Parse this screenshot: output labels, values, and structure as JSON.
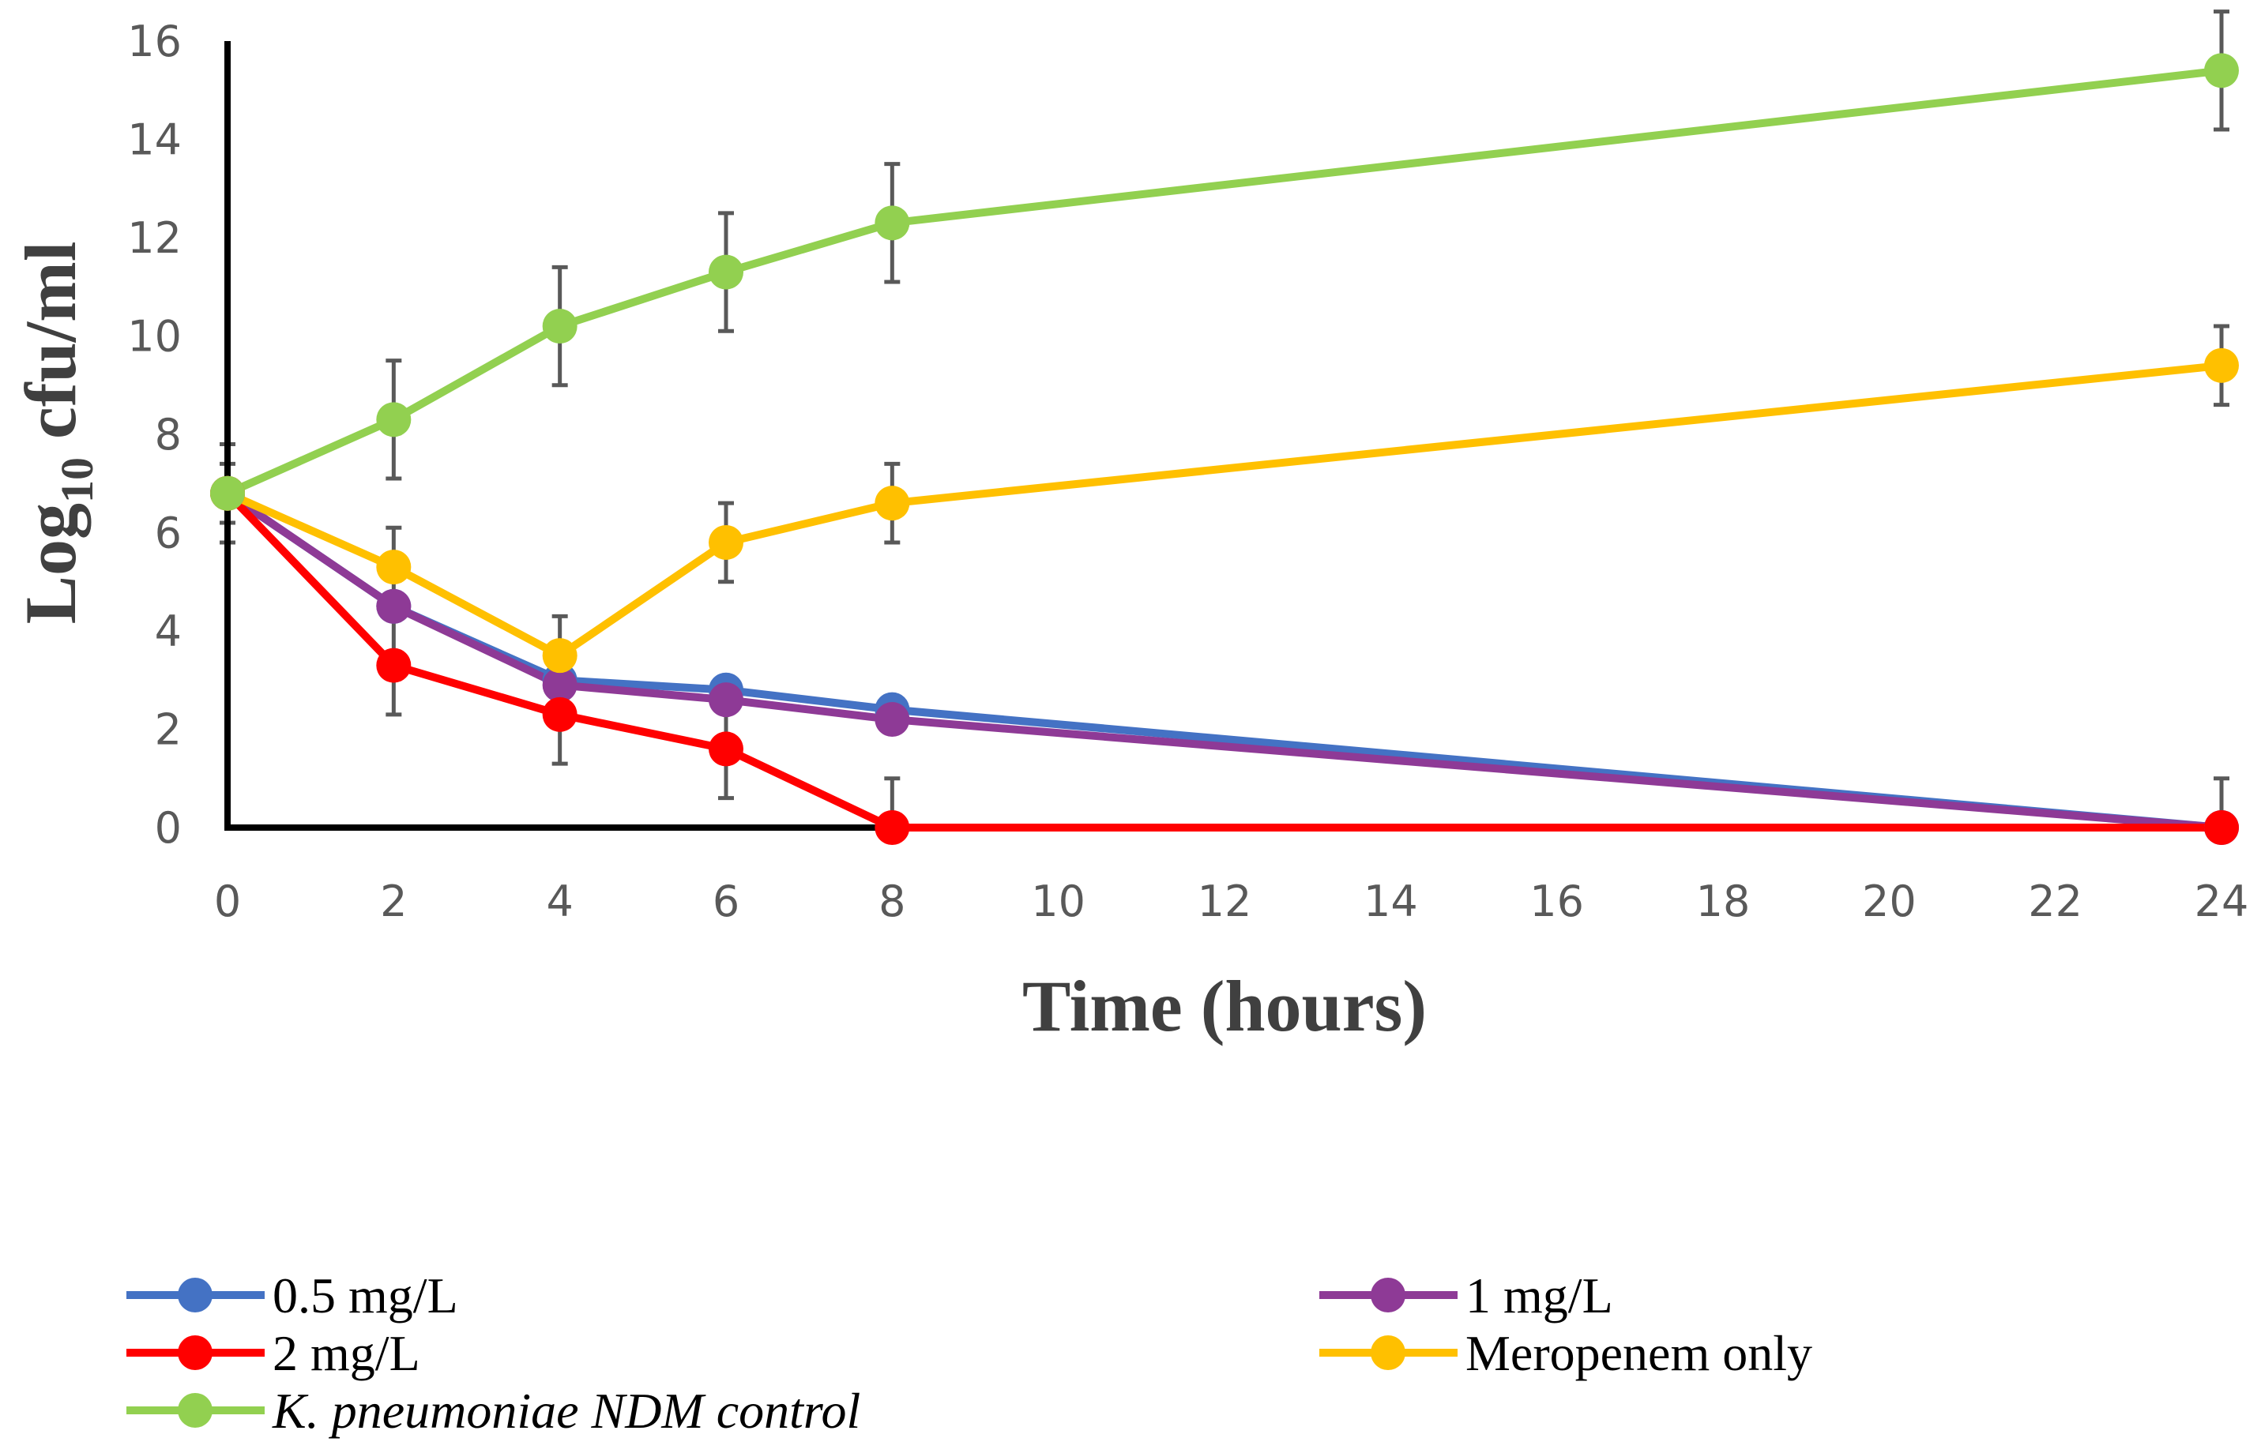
{
  "chart_data": {
    "type": "line",
    "xlabel": "Time (hours)",
    "ylabel_main": "Log",
    "ylabel_sub": "10",
    "ylabel_rest": " cfu/ml",
    "xlim": [
      0,
      24
    ],
    "ylim": [
      0,
      16
    ],
    "x_ticks": [
      0,
      2,
      4,
      6,
      8,
      10,
      12,
      14,
      16,
      18,
      20,
      22,
      24
    ],
    "y_ticks": [
      0,
      2,
      4,
      6,
      8,
      10,
      12,
      14,
      16
    ],
    "grid": false,
    "legend_position": "bottom",
    "series": [
      {
        "name": "0.5 mg/L",
        "color": "#4472C4",
        "italic": false,
        "x": [
          0,
          2,
          4,
          6,
          8,
          24
        ],
        "y": [
          6.8,
          4.5,
          3.0,
          2.8,
          2.4,
          0.0
        ],
        "err": [
          0,
          0,
          0,
          0,
          0,
          0
        ]
      },
      {
        "name": "1 mg/L",
        "color": "#8E3A96",
        "italic": false,
        "x": [
          0,
          2,
          4,
          6,
          8,
          24
        ],
        "y": [
          6.8,
          4.5,
          2.9,
          2.6,
          2.2,
          0.0
        ],
        "err": [
          0,
          0,
          0,
          0,
          0,
          0
        ]
      },
      {
        "name": "2 mg/L",
        "color": "#FF0000",
        "italic": false,
        "x": [
          0,
          2,
          4,
          6,
          8,
          24
        ],
        "y": [
          6.8,
          3.3,
          2.3,
          1.6,
          0.0,
          0.0
        ],
        "err": [
          0,
          1.0,
          1.0,
          1.0,
          1.0,
          1.0
        ]
      },
      {
        "name": "Meropenem only",
        "color": "#FFC000",
        "italic": false,
        "x": [
          0,
          2,
          4,
          6,
          8,
          24
        ],
        "y": [
          6.8,
          5.3,
          3.5,
          5.8,
          6.6,
          9.4
        ],
        "err": [
          1.0,
          0.8,
          0.8,
          0.8,
          0.8,
          0.8
        ]
      },
      {
        "name": "K. pneumoniae NDM control",
        "color": "#92D050",
        "italic": true,
        "x": [
          0,
          2,
          4,
          6,
          8,
          24
        ],
        "y": [
          6.8,
          8.3,
          10.2,
          11.3,
          12.3,
          15.4
        ],
        "err": [
          0.6,
          1.2,
          1.2,
          1.2,
          1.2,
          1.2
        ]
      }
    ]
  }
}
